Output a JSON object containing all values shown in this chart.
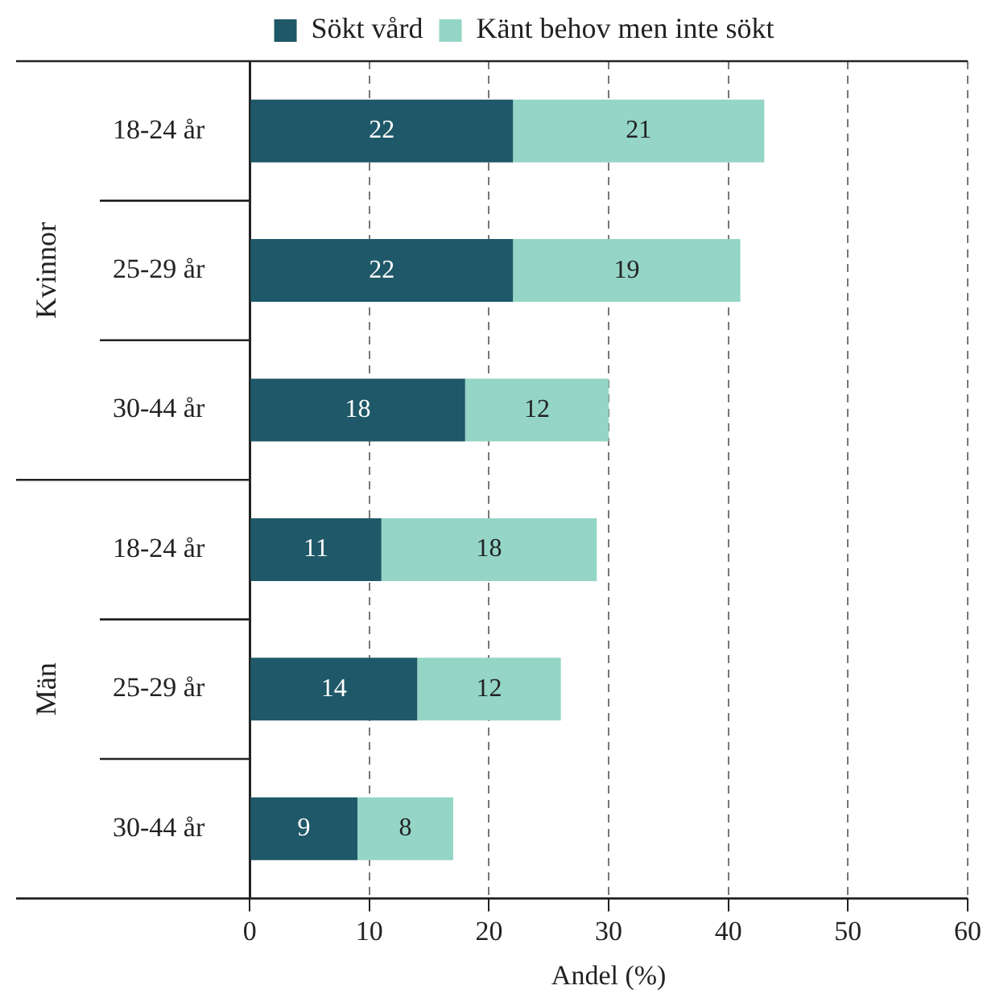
{
  "chart_data": {
    "type": "bar",
    "orientation": "horizontal",
    "stacked": true,
    "categories": [
      "18-24 år",
      "25-29 år",
      "30-44 år",
      "18-24 år",
      "25-29 år",
      "30-44 år"
    ],
    "series": [
      {
        "name": "Sökt vård",
        "color": "#1f5868",
        "values": [
          22,
          22,
          18,
          11,
          14,
          9
        ]
      },
      {
        "name": "Känt behov men inte sökt",
        "color": "#94d5c6",
        "values": [
          21,
          19,
          12,
          18,
          12,
          8
        ]
      }
    ],
    "annotations": [
      "Kvinnor",
      "Män"
    ],
    "xlabel": "Andel (%)",
    "xlim": [
      0,
      60
    ],
    "xticks": [
      0,
      10,
      20,
      30,
      40,
      50,
      60
    ],
    "grid": "x",
    "legend": "top",
    "data_labels": true
  }
}
